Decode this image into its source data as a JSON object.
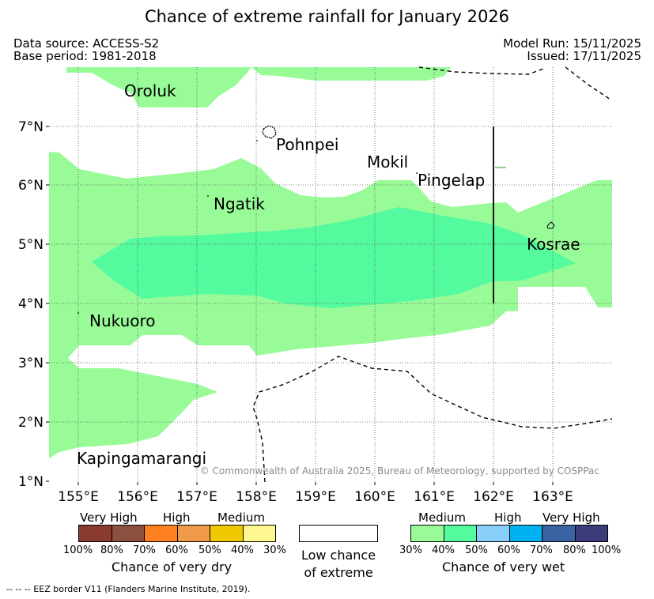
{
  "title": "Chance of extreme rainfall for January 2026",
  "data_source": "Data source: ACCESS-S2",
  "base_period": "Base period: 1981-2018",
  "model_run": "Model Run: 15/11/2025",
  "issued": "Issued: 17/11/2025",
  "copyright": "© Commonwealth of Australia 2025, Bureau of Meteorology, supported by COSPPac",
  "lat_ticks": [
    "7°N",
    "6°N",
    "5°N",
    "4°N",
    "3°N",
    "2°N",
    "1°N"
  ],
  "lon_ticks": [
    "155°E",
    "156°E",
    "157°E",
    "158°E",
    "159°E",
    "160°E",
    "161°E",
    "162°E",
    "163°E"
  ],
  "places": [
    "Oroluk",
    "Pohnpei",
    "Mokil",
    "Pingelap",
    "Ngatik",
    "Kosrae",
    "Nukuoro",
    "Kapingamarangi"
  ],
  "legend": {
    "dry": {
      "categories": [
        "Very High",
        "High",
        "Medium"
      ],
      "percents": [
        "100%",
        "80%",
        "70%",
        "60%",
        "50%",
        "40%",
        "30%"
      ],
      "colors": [
        "#8b3a2f",
        "#8b5040",
        "#ff8020",
        "#ee9a48",
        "#eec800",
        "#fff890"
      ],
      "label": "Chance of very dry"
    },
    "neutral": {
      "label_line1": "Low chance",
      "label_line2": "of extreme"
    },
    "wet": {
      "categories": [
        "Medium",
        "High",
        "Very High"
      ],
      "percents": [
        "30%",
        "40%",
        "50%",
        "60%",
        "70%",
        "80%",
        "100%"
      ],
      "colors": [
        "#98fb98",
        "#54fa9e",
        "#87cefa",
        "#00b1f0",
        "#3a63a4",
        "#3d3b7a"
      ],
      "label": "Chance of very wet"
    }
  },
  "eez_note": "--  --  -- EEZ border V11 (Flanders Marine Institute, 2019)."
}
